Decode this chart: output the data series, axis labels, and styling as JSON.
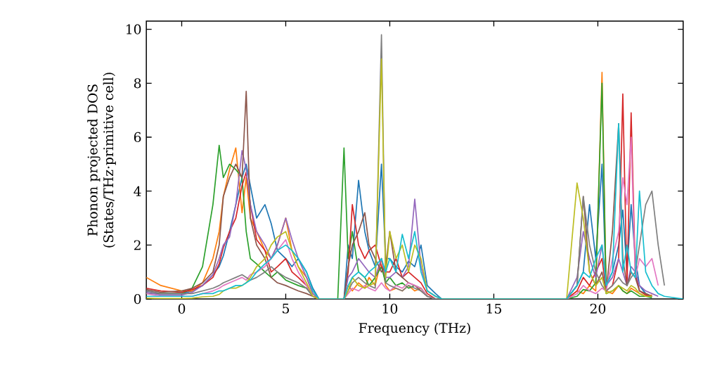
{
  "chart_data": {
    "type": "line",
    "xlabel": "Frequency (THz)",
    "ylabel": "Phonon projected DOS (States/THz·primitive cell)",
    "xlim": [
      -1.7,
      24.1
    ],
    "ylim": [
      0,
      10.3
    ],
    "xticks": [
      0,
      5,
      10,
      15,
      20
    ],
    "yticks": [
      0,
      2,
      4,
      6,
      8,
      10
    ],
    "grid": false,
    "x": [
      -1.7,
      -1,
      0,
      0.5,
      1,
      1.5,
      1.8,
      2,
      2.3,
      2.6,
      2.9,
      3.1,
      3.3,
      3.6,
      4,
      4.3,
      4.6,
      5,
      5.3,
      5.6,
      6,
      6.3,
      6.6,
      7,
      7.5,
      7.8,
      8,
      8.2,
      8.5,
      8.8,
      9,
      9.3,
      9.6,
      9.8,
      10,
      10.3,
      10.6,
      10.9,
      11.2,
      11.5,
      11.8,
      12.2,
      12.5,
      15,
      18.5,
      19,
      19.3,
      19.6,
      19.9,
      20.2,
      20.4,
      20.7,
      21,
      21.2,
      21.4,
      21.6,
      21.8,
      22,
      22.3,
      22.6,
      22.9,
      23.2,
      24.1
    ],
    "series": [
      {
        "color": "#1f77b4",
        "values": [
          0.3,
          0.2,
          0.2,
          0.3,
          0.5,
          0.9,
          1.2,
          1.6,
          2.5,
          3.5,
          4.5,
          5.0,
          4.2,
          3.0,
          3.5,
          2.8,
          1.8,
          1.5,
          1.2,
          1.5,
          1.0,
          0.4,
          0,
          0,
          0,
          0,
          2.0,
          1.5,
          4.4,
          2.5,
          1.8,
          1.2,
          5.0,
          1.5,
          1.5,
          1.2,
          1.0,
          1.4,
          1.2,
          2.0,
          0.5,
          0.2,
          0,
          0,
          0,
          0.5,
          1.0,
          3.5,
          1.5,
          5.0,
          0.5,
          1.0,
          2.0,
          3.3,
          1.0,
          3.5,
          1.5,
          0.5,
          0.2,
          0.1,
          null,
          null,
          null
        ]
      },
      {
        "color": "#ff7f0e",
        "values": [
          0.8,
          0.5,
          0.3,
          0.3,
          0.6,
          1.5,
          2.5,
          3.8,
          4.8,
          5.6,
          3.2,
          4.5,
          3.0,
          2.5,
          1.8,
          1.5,
          2.0,
          3.0,
          1.8,
          1.2,
          0.8,
          0.2,
          0,
          0,
          0,
          0,
          0.5,
          0.3,
          0.6,
          0.4,
          0.8,
          0.5,
          1.5,
          0.5,
          0.3,
          0.4,
          0.3,
          0.5,
          0.3,
          0.4,
          0.1,
          0,
          0,
          0,
          0,
          0.3,
          0.2,
          0.5,
          0.3,
          8.4,
          0.3,
          0.2,
          0.5,
          0.3,
          0.2,
          0.4,
          0.3,
          0.2,
          0.1,
          0.15,
          null,
          null,
          null
        ]
      },
      {
        "color": "#2ca02c",
        "values": [
          0.2,
          0.2,
          0.2,
          0.4,
          1.2,
          3.5,
          5.7,
          4.5,
          5.0,
          4.8,
          4.5,
          2.5,
          1.5,
          1.3,
          1.0,
          0.8,
          1.0,
          0.7,
          0.6,
          0.5,
          0.4,
          0.1,
          0,
          0,
          0,
          5.6,
          1.5,
          2.5,
          1.0,
          0.8,
          0.5,
          0.8,
          1.2,
          0.6,
          0.8,
          0.5,
          0.6,
          0.4,
          0.5,
          0.4,
          0.1,
          0,
          0,
          0,
          0,
          0.1,
          0.35,
          0.3,
          0.6,
          8.0,
          0.2,
          0.3,
          0.5,
          0.3,
          0.2,
          0.3,
          0.2,
          0.1,
          0.1,
          0.05,
          null,
          null,
          null
        ]
      },
      {
        "color": "#d62728",
        "values": [
          0.4,
          0.3,
          0.25,
          0.35,
          0.5,
          0.8,
          1.3,
          1.9,
          2.5,
          3.0,
          4.2,
          4.7,
          3.5,
          2.2,
          1.8,
          1.0,
          1.2,
          1.5,
          1.0,
          0.8,
          0.5,
          0.1,
          0,
          0,
          0,
          0,
          1.0,
          3.5,
          2.0,
          1.5,
          1.8,
          2.0,
          1.2,
          1.0,
          1.0,
          1.5,
          0.8,
          1.0,
          0.8,
          0.6,
          0.2,
          0,
          0,
          0,
          0,
          0.3,
          0.8,
          0.5,
          1.0,
          1.5,
          0.3,
          0.5,
          1.5,
          7.6,
          0.5,
          6.9,
          1.0,
          0.3,
          0.15,
          0.1,
          null,
          null,
          null
        ]
      },
      {
        "color": "#9467bd",
        "values": [
          0.25,
          0.15,
          0.15,
          0.25,
          0.5,
          0.9,
          1.5,
          2.0,
          2.3,
          3.5,
          5.5,
          4.8,
          3.5,
          2.5,
          2.0,
          1.5,
          2.0,
          3.0,
          2.2,
          1.5,
          0.8,
          0.2,
          0,
          0,
          0,
          0,
          0.8,
          1.0,
          1.5,
          1.2,
          1.0,
          0.8,
          1.5,
          0.8,
          0.8,
          1.0,
          0.8,
          1.2,
          3.7,
          1.2,
          0.3,
          0.1,
          0,
          0,
          0,
          0.8,
          2.5,
          1.5,
          0.8,
          2.0,
          0.5,
          0.8,
          1.5,
          1.0,
          0.5,
          1.2,
          1.0,
          0.5,
          0.3,
          0.2,
          0.1,
          null,
          null
        ]
      },
      {
        "color": "#8c564b",
        "values": [
          0.35,
          0.25,
          0.3,
          0.4,
          0.6,
          1.0,
          2.0,
          3.8,
          4.5,
          5.0,
          4.5,
          7.7,
          3.0,
          2.0,
          1.5,
          0.8,
          0.6,
          0.5,
          0.4,
          0.3,
          0.2,
          0.1,
          0,
          0,
          0,
          0,
          1.2,
          2.0,
          2.5,
          3.2,
          2.0,
          1.5,
          1.0,
          1.2,
          2.5,
          1.0,
          0.8,
          0.6,
          0.5,
          0.3,
          0.1,
          0,
          0,
          0,
          0,
          0.5,
          3.8,
          1.0,
          0.5,
          1.0,
          0.3,
          2.5,
          6.5,
          1.5,
          0.5,
          1.0,
          0.8,
          0.3,
          0.2,
          0.1,
          null,
          null,
          null
        ]
      },
      {
        "color": "#e377c2",
        "values": [
          0.2,
          0.1,
          0.1,
          0.1,
          0.2,
          0.3,
          0.4,
          0.5,
          0.6,
          0.7,
          0.8,
          0.7,
          0.9,
          1.0,
          1.2,
          1.5,
          1.8,
          2.2,
          1.5,
          1.0,
          0.5,
          0.1,
          0,
          0,
          0,
          0,
          0.2,
          0.4,
          0.3,
          0.5,
          0.4,
          0.3,
          0.6,
          0.4,
          0.3,
          0.5,
          0.4,
          0.6,
          0.5,
          0.4,
          0.1,
          0,
          0,
          0,
          0,
          0.2,
          0.5,
          0.3,
          0.2,
          0.4,
          0.3,
          1.5,
          2.5,
          4.5,
          3.5,
          6.0,
          0.8,
          1.5,
          1.2,
          1.5,
          0.5,
          null,
          null
        ]
      },
      {
        "color": "#7f7f7f",
        "values": [
          0.3,
          0.2,
          0.2,
          0.2,
          0.3,
          0.4,
          0.5,
          0.6,
          0.7,
          0.8,
          0.9,
          0.8,
          0.7,
          0.8,
          1.0,
          1.2,
          1.0,
          0.8,
          0.7,
          0.6,
          0.4,
          0.1,
          0,
          0,
          0,
          0,
          0.3,
          0.6,
          0.8,
          0.6,
          0.5,
          0.4,
          9.8,
          0.6,
          0.5,
          0.4,
          0.3,
          0.5,
          0.4,
          0.3,
          0.1,
          0,
          0,
          0,
          0,
          0.5,
          3.8,
          2.0,
          1.0,
          0.5,
          0.3,
          0.5,
          0.8,
          0.6,
          0.5,
          0.8,
          1.0,
          2.0,
          3.5,
          4.0,
          2.0,
          0.5,
          null
        ]
      },
      {
        "color": "#bcbd22",
        "values": [
          0.03,
          0.02,
          0.02,
          0.03,
          0.08,
          0.1,
          0.17,
          0.3,
          0.4,
          0.4,
          0.5,
          0.6,
          0.8,
          1.2,
          1.5,
          2.0,
          2.3,
          2.5,
          1.8,
          1.2,
          0.6,
          0.1,
          0,
          0,
          0,
          0,
          0.3,
          0.8,
          0.5,
          0.4,
          0.5,
          0.6,
          8.9,
          0.8,
          2.5,
          1.5,
          2.0,
          1.0,
          2.0,
          1.5,
          0.3,
          0.1,
          0,
          0,
          0,
          4.3,
          3.0,
          1.0,
          0.5,
          0.8,
          0.2,
          0.3,
          0.5,
          0.4,
          0.3,
          0.5,
          0.4,
          0.2,
          0.1,
          0.1,
          null,
          null,
          null
        ]
      },
      {
        "color": "#17becf",
        "values": [
          0.1,
          0.1,
          0.1,
          0.1,
          0.2,
          0.2,
          0.3,
          0.3,
          0.4,
          0.5,
          0.5,
          0.6,
          0.7,
          1.0,
          1.3,
          1.5,
          1.8,
          2.0,
          1.8,
          1.5,
          1.0,
          0.3,
          0,
          0,
          0,
          0,
          0.5,
          0.8,
          1.0,
          0.8,
          1.0,
          1.2,
          1.5,
          1.0,
          1.5,
          1.0,
          2.4,
          1.5,
          2.5,
          1.0,
          0.3,
          0.1,
          0,
          0,
          0,
          0.5,
          1.0,
          0.8,
          1.5,
          2.0,
          0.5,
          1.0,
          6.5,
          1.0,
          2.0,
          1.0,
          0.8,
          4.0,
          1.0,
          0.5,
          0.2,
          0.1,
          0
        ]
      }
    ]
  }
}
